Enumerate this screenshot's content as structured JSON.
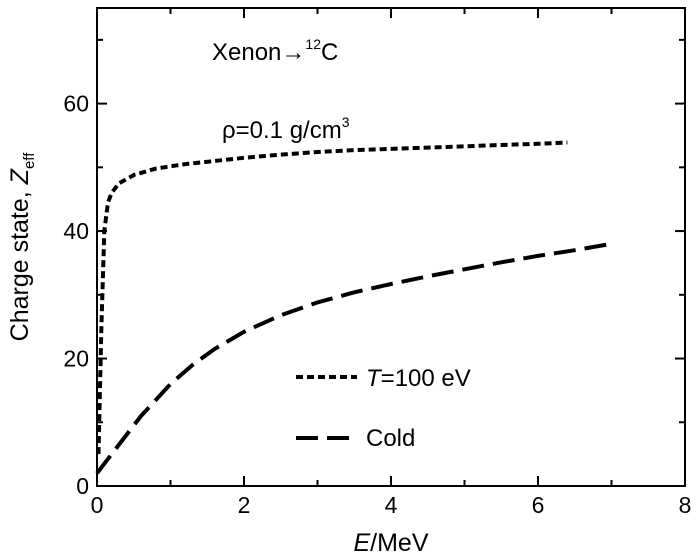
{
  "chart_data": {
    "type": "line",
    "x_axis": {
      "label_italic": "E",
      "label_rest": "/MeV",
      "range": [
        0,
        8
      ],
      "ticks": [
        0,
        2,
        4,
        6,
        8
      ],
      "tick_labels": [
        "0",
        "2",
        "4",
        "6",
        "8"
      ],
      "minor_step": 1
    },
    "y_axis": {
      "label_prefix": "Charge state, ",
      "label_italic": "Z",
      "label_subscript": "eff",
      "range": [
        0,
        75
      ],
      "ticks": [
        0,
        20,
        40,
        60
      ],
      "tick_labels": [
        "0",
        "20",
        "40",
        "60"
      ],
      "minor_step": 10
    },
    "annotations": {
      "reaction_prefix": "Xenon",
      "reaction_arrow": "→",
      "reaction_superscript": "12",
      "reaction_suffix": "C",
      "density_text": "ρ=0.1 g/cm",
      "density_superscript": "3"
    },
    "grid": false,
    "legend_position": "bottom-center",
    "series": [
      {
        "name_italic": "T",
        "name_rest": "=100 eV",
        "style": "dotted",
        "color": "#000000",
        "x": [
          0.02,
          0.06,
          0.1,
          0.15,
          0.2,
          0.3,
          0.5,
          0.8,
          1.2,
          1.6,
          2.0,
          2.5,
          3.0,
          3.5,
          4.0,
          4.5,
          5.0,
          5.5,
          6.0,
          6.4
        ],
        "y": [
          5,
          25,
          40,
          44.5,
          46,
          47.5,
          48.8,
          49.8,
          50.5,
          51,
          51.5,
          52,
          52.4,
          52.7,
          52.9,
          53.1,
          53.3,
          53.5,
          53.7,
          53.9
        ]
      },
      {
        "name": "Cold",
        "style": "dashed",
        "color": "#000000",
        "x": [
          0,
          0.1,
          0.2,
          0.4,
          0.6,
          0.8,
          1.0,
          1.3,
          1.6,
          2.0,
          2.5,
          3.0,
          3.5,
          4.0,
          4.5,
          5.0,
          5.5,
          6.0,
          6.5,
          7.0
        ],
        "y": [
          2,
          3.5,
          5,
          8,
          11,
          13.5,
          16,
          19,
          21.5,
          24.2,
          26.8,
          28.8,
          30.4,
          31.7,
          32.9,
          34,
          35.1,
          36.1,
          37,
          38
        ]
      }
    ]
  }
}
